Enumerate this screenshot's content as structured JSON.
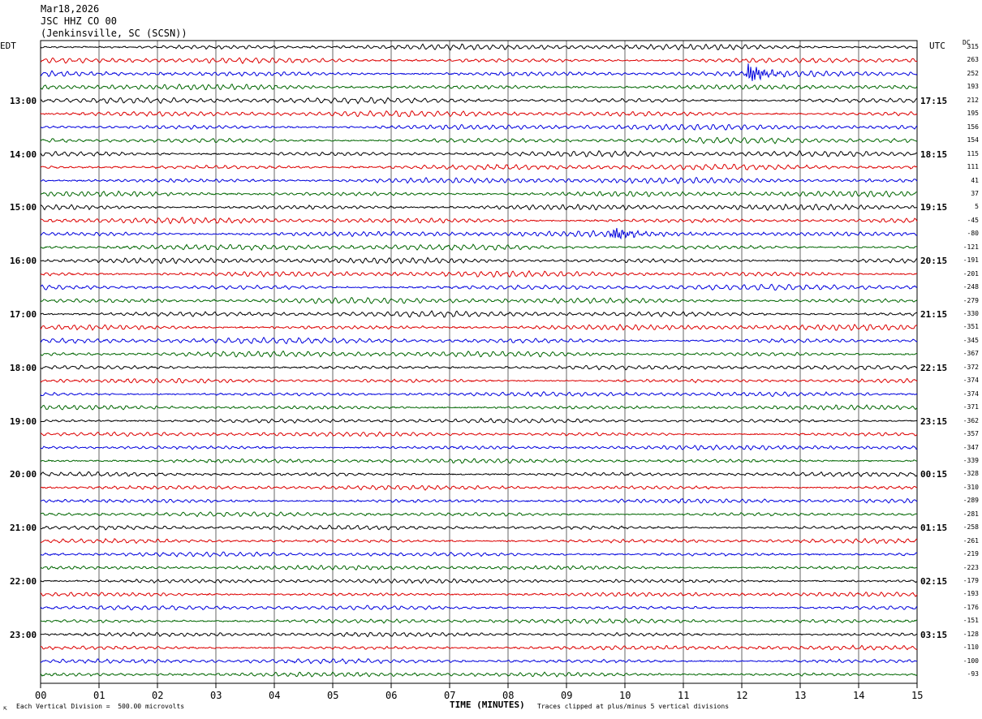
{
  "header": {
    "date": "Mar18,2026",
    "station": "JSC HHZ CO 00",
    "location": "(Jenkinsville, SC (SCSN))"
  },
  "left_tz": "EDT",
  "right_tz": "UTC",
  "dc_label": "DC",
  "footer": {
    "scale": "Each Vertical Division =  500.00 microvolts",
    "clip": "Traces clipped at plus/minus 5 vertical divisions",
    "xtitle": "TIME (MINUTES)"
  },
  "colors": {
    "cycle": [
      "#000000",
      "#dd0000",
      "#0000dd",
      "#006600"
    ],
    "grid": "#000000"
  },
  "chart_data": {
    "type": "line",
    "title": "",
    "xlabel": "TIME (MINUTES)",
    "x_ticks": [
      "00",
      "01",
      "02",
      "03",
      "04",
      "05",
      "06",
      "07",
      "08",
      "09",
      "10",
      "11",
      "12",
      "13",
      "14",
      "15"
    ],
    "xlim": [
      0,
      15
    ],
    "left_hour_labels": [
      "13:00",
      "14:00",
      "15:00",
      "16:00",
      "17:00",
      "18:00",
      "19:00",
      "20:00",
      "21:00",
      "22:00",
      "23:00"
    ],
    "right_hour_labels": [
      "17:15",
      "18:15",
      "19:15",
      "20:15",
      "21:15",
      "22:15",
      "23:15",
      "00:15",
      "01:15",
      "02:15",
      "03:15"
    ],
    "trace_count": 48,
    "dc_offsets": [
      "315",
      "263",
      "252",
      "193",
      "212",
      "195",
      "156",
      "154",
      "115",
      "111",
      "41",
      "37",
      "5",
      "-45",
      "-80",
      "-121",
      "-191",
      "-201",
      "-248",
      "-279",
      "-330",
      "-351",
      "-345",
      "-367",
      "-372",
      "-374",
      "-374",
      "-371",
      "-362",
      "-357",
      "-347",
      "-339",
      "-328",
      "-310",
      "-289",
      "-281",
      "-258",
      "-261",
      "-219",
      "-223",
      "-179",
      "-193",
      "-176",
      "-151",
      "-128",
      "-110",
      "-100",
      "-93"
    ],
    "events": [
      {
        "trace": 2,
        "minute": 12.1,
        "amplitude": "large"
      },
      {
        "trace": 14,
        "minute": 9.8,
        "amplitude": "medium"
      }
    ]
  }
}
